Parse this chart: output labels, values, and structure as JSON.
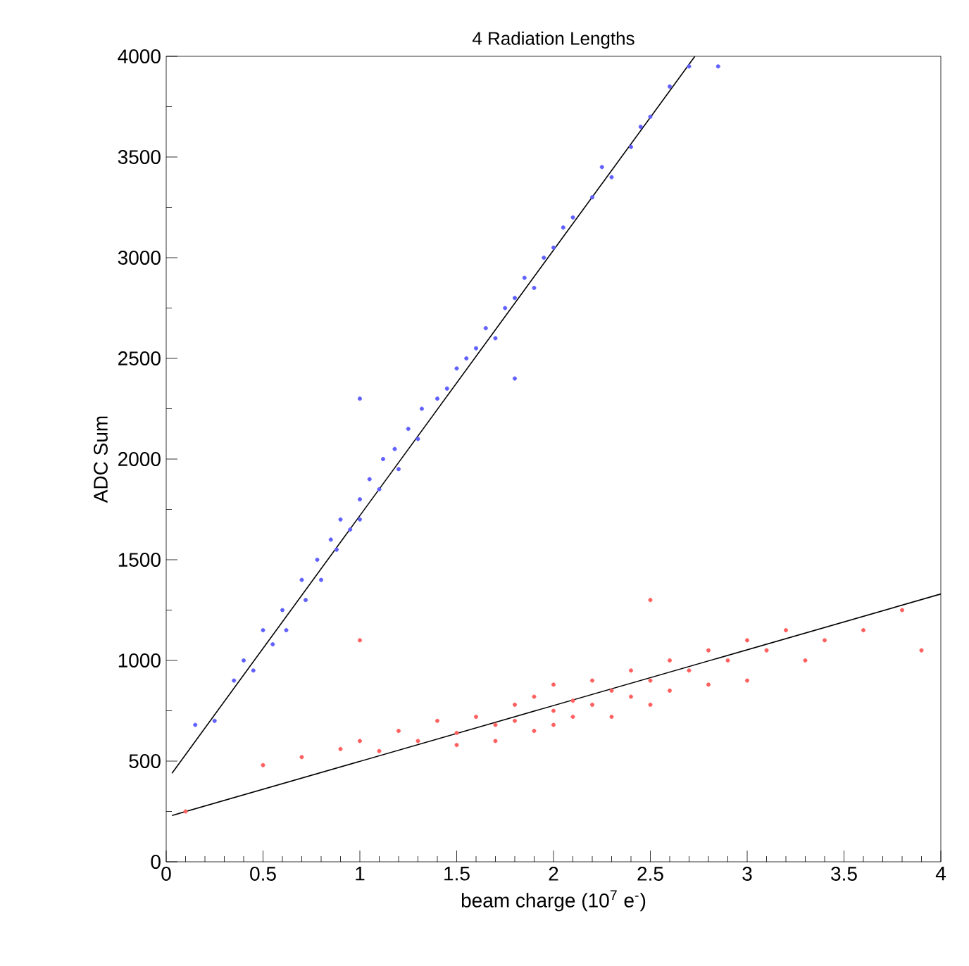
{
  "chart_data": {
    "type": "scatter",
    "title": "4 Radiation Lengths",
    "xlabel": "beam charge (10$^{7}$ e$^{-}$)",
    "ylabel": "ADC Sum",
    "xlim": [
      0,
      4
    ],
    "ylim": [
      0,
      4000
    ],
    "xticks": [
      0,
      0.5,
      1,
      1.5,
      2,
      2.5,
      3,
      3.5,
      4
    ],
    "yticks": [
      0,
      500,
      1000,
      1500,
      2000,
      2500,
      3000,
      3500,
      4000
    ],
    "grid": false,
    "marker": "circle",
    "series": [
      {
        "color": "#6060ff",
        "x": [
          0.15,
          0.25,
          0.35,
          0.4,
          0.45,
          0.5,
          0.55,
          0.6,
          0.62,
          0.7,
          0.72,
          0.78,
          0.8,
          0.85,
          0.88,
          0.9,
          0.95,
          1.0,
          1.0,
          1.05,
          1.1,
          1.12,
          1.18,
          1.2,
          1.25,
          1.3,
          1.32,
          1.4,
          1.45,
          1.5,
          1.55,
          1.6,
          1.65,
          1.7,
          1.75,
          1.8,
          1.85,
          1.9,
          1.95,
          2.0,
          2.05,
          2.1,
          2.2,
          2.25,
          2.3,
          2.4,
          2.45,
          2.5,
          2.6,
          2.7,
          2.85,
          1.0,
          1.8
        ],
        "values": [
          680,
          700,
          900,
          1000,
          950,
          1150,
          1080,
          1250,
          1150,
          1400,
          1300,
          1500,
          1400,
          1600,
          1550,
          1700,
          1650,
          1800,
          1700,
          1900,
          1850,
          2000,
          2050,
          1950,
          2150,
          2100,
          2250,
          2300,
          2350,
          2450,
          2500,
          2550,
          2650,
          2600,
          2750,
          2800,
          2900,
          2850,
          3000,
          3050,
          3150,
          3200,
          3300,
          3450,
          3400,
          3550,
          3650,
          3700,
          3850,
          3950,
          3950,
          2300,
          2400
        ]
      },
      {
        "color": "#ff6060",
        "x": [
          0.1,
          0.5,
          0.7,
          0.9,
          1.0,
          1.1,
          1.2,
          1.3,
          1.4,
          1.5,
          1.5,
          1.6,
          1.7,
          1.7,
          1.8,
          1.8,
          1.9,
          1.9,
          2.0,
          2.0,
          2.0,
          2.1,
          2.1,
          2.2,
          2.2,
          2.3,
          2.3,
          2.4,
          2.4,
          2.5,
          2.5,
          2.6,
          2.6,
          2.7,
          2.8,
          2.8,
          2.9,
          3.0,
          3.0,
          3.1,
          3.2,
          3.3,
          3.4,
          3.6,
          3.8,
          3.9,
          1.0,
          2.5
        ],
        "values": [
          250,
          480,
          520,
          560,
          600,
          550,
          650,
          600,
          700,
          640,
          580,
          720,
          680,
          600,
          780,
          700,
          650,
          820,
          750,
          880,
          680,
          800,
          720,
          900,
          780,
          850,
          720,
          950,
          820,
          900,
          780,
          1000,
          850,
          950,
          1050,
          880,
          1000,
          1100,
          900,
          1050,
          1150,
          1000,
          1100,
          1150,
          1250,
          1050,
          1100,
          1300
        ]
      },
      {
        "type": "line",
        "color": "#000000",
        "marker": "none",
        "x": [
          0.03,
          2.73
        ],
        "values": [
          440,
          4000
        ]
      },
      {
        "type": "line",
        "color": "#000000",
        "marker": "none",
        "x": [
          0.03,
          4
        ],
        "values": [
          230,
          1330
        ]
      }
    ]
  }
}
